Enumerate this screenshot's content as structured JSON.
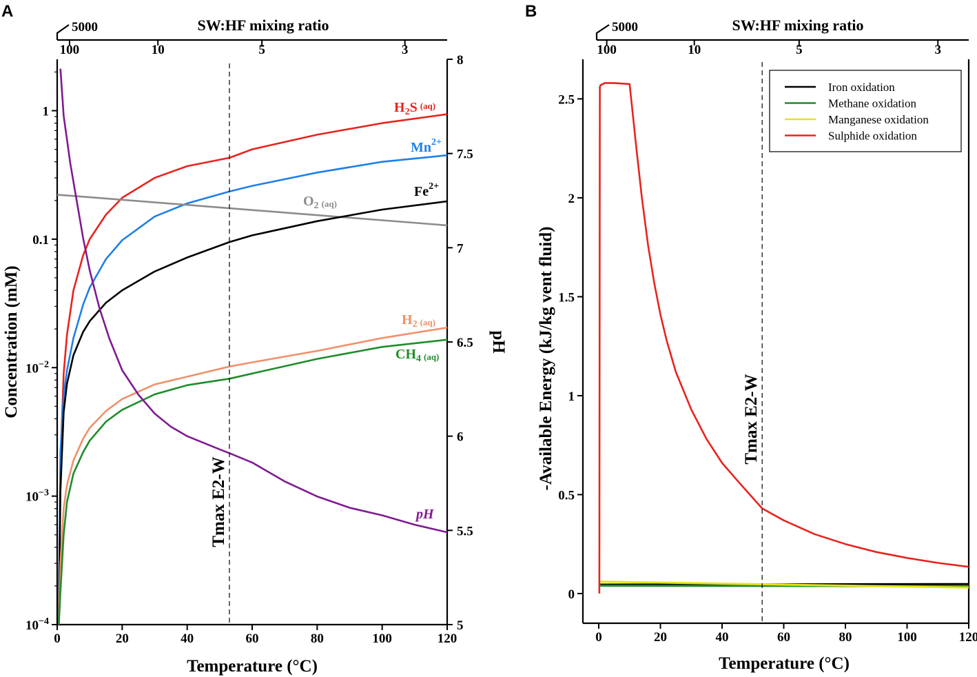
{
  "panels": {
    "A": "A",
    "B": "B"
  },
  "chart_data": [
    {
      "type": "line",
      "panel": "A",
      "xlabel": "Temperature (°C)",
      "ylabel": "Concentration (mM)",
      "y2label": "pH",
      "top_axis_label": "SW:HF mixing ratio",
      "xlim": [
        0,
        120
      ],
      "ylim_log10": [
        -4,
        0.4
      ],
      "y2lim": [
        5,
        8
      ],
      "xticks": [
        0,
        20,
        40,
        60,
        80,
        100,
        120
      ],
      "yticks": [
        {
          "value": 1,
          "label": "1"
        },
        {
          "value": 0.1,
          "label": "0.1"
        },
        {
          "value": 0.01,
          "base": "10",
          "exp": "−2"
        },
        {
          "value": 0.001,
          "base": "10",
          "exp": "−3"
        },
        {
          "value": 0.0001,
          "base": "10",
          "exp": "−4"
        }
      ],
      "y2ticks": [
        5,
        5.5,
        6,
        6.5,
        7,
        7.5,
        8
      ],
      "top_ticks": [
        {
          "label": "5000",
          "break_label": true
        },
        {
          "label": "100",
          "t": 3.8
        },
        {
          "label": "10",
          "t": 31
        },
        {
          "label": "5",
          "t": 63
        },
        {
          "label": "3",
          "t": 107
        }
      ],
      "tmax_line": {
        "x": 53,
        "label": "Tmax E2-W"
      },
      "series": [
        {
          "name": "H2S (aq)",
          "color": "#e8231d",
          "axis": "left",
          "x": [
            0.5,
            1,
            2,
            3,
            5,
            8,
            10,
            15,
            20,
            30,
            40,
            53,
            60,
            80,
            100,
            120
          ],
          "y": [
            0.0001,
            0.0018,
            0.009,
            0.018,
            0.04,
            0.075,
            0.1,
            0.155,
            0.21,
            0.3,
            0.37,
            0.43,
            0.5,
            0.65,
            0.8,
            0.94
          ]
        },
        {
          "name": "Mn2+",
          "color": "#1e7fe6",
          "axis": "left",
          "x": [
            0.5,
            1,
            2,
            3,
            5,
            8,
            10,
            15,
            20,
            30,
            40,
            53,
            60,
            80,
            100,
            120
          ],
          "y": [
            0.0001,
            0.0022,
            0.006,
            0.0095,
            0.017,
            0.031,
            0.042,
            0.07,
            0.098,
            0.15,
            0.19,
            0.235,
            0.26,
            0.33,
            0.4,
            0.45
          ]
        },
        {
          "name": "O2 (aq)",
          "color": "#8c8c8c",
          "axis": "left",
          "x": [
            0,
            120
          ],
          "y": [
            0.222,
            0.128
          ]
        },
        {
          "name": "Fe2+",
          "color": "#000000",
          "axis": "left",
          "x": [
            0.5,
            1,
            2,
            3,
            5,
            8,
            10,
            15,
            20,
            30,
            40,
            53,
            60,
            80,
            100,
            120
          ],
          "y": [
            0.0001,
            0.0011,
            0.0045,
            0.0075,
            0.0125,
            0.019,
            0.023,
            0.032,
            0.04,
            0.056,
            0.072,
            0.095,
            0.107,
            0.138,
            0.17,
            0.197
          ]
        },
        {
          "name": "H2 (aq)",
          "color": "#f0906a",
          "axis": "left",
          "x": [
            0.5,
            1,
            2,
            3,
            5,
            8,
            10,
            15,
            20,
            30,
            40,
            53,
            60,
            80,
            100,
            120
          ],
          "y": [
            0.0001,
            0.0003,
            0.0008,
            0.00122,
            0.0019,
            0.0028,
            0.0034,
            0.0046,
            0.0057,
            0.0074,
            0.0085,
            0.0102,
            0.011,
            0.0135,
            0.017,
            0.0205
          ]
        },
        {
          "name": "CH4 (aq)",
          "color": "#1f8c2a",
          "axis": "left",
          "x": [
            0.5,
            1,
            2,
            3,
            5,
            8,
            10,
            15,
            20,
            30,
            40,
            53,
            60,
            80,
            100,
            120
          ],
          "y": [
            0.0001,
            0.00018,
            0.0005,
            0.0009,
            0.0015,
            0.0022,
            0.0027,
            0.0038,
            0.0047,
            0.0062,
            0.0073,
            0.0082,
            0.009,
            0.0117,
            0.0145,
            0.0165
          ]
        },
        {
          "name": "pH",
          "color": "#7f1a91",
          "axis": "right",
          "x": [
            1,
            2,
            4,
            6,
            8,
            10,
            13,
            16,
            20,
            25,
            30,
            35,
            40,
            50,
            53,
            60,
            70,
            80,
            90,
            100,
            110,
            120
          ],
          "y": [
            7.95,
            7.7,
            7.45,
            7.25,
            7.05,
            6.88,
            6.68,
            6.52,
            6.35,
            6.22,
            6.12,
            6.05,
            6.0,
            5.93,
            5.91,
            5.86,
            5.76,
            5.68,
            5.62,
            5.58,
            5.53,
            5.49
          ]
        }
      ],
      "curve_labels": [
        {
          "series": "H2S (aq)",
          "main": "H",
          "sub": "2",
          "rest": "S",
          "small": "(aq)"
        },
        {
          "series": "Mn2+",
          "main": "Mn",
          "sup": "2+"
        },
        {
          "series": "Fe2+",
          "main": "Fe",
          "sup": "2+"
        },
        {
          "series": "O2 (aq)",
          "main": "O",
          "sub": "2",
          "small": "(aq)"
        },
        {
          "series": "H2 (aq)",
          "main": "H",
          "sub": "2",
          "small": "(aq)"
        },
        {
          "series": "CH4 (aq)",
          "main": "CH",
          "sub": "4",
          "small": "(aq)"
        },
        {
          "series": "pH",
          "main": "pH"
        }
      ]
    },
    {
      "type": "line",
      "panel": "B",
      "xlabel": "Temperature (°C)",
      "ylabel": "-Available Energy (kJ/kg vent fluid)",
      "top_axis_label": "SW:HF mixing ratio",
      "xlim": [
        0,
        120
      ],
      "ylim": [
        -0.15,
        2.7
      ],
      "xticks": [
        0,
        20,
        40,
        60,
        80,
        100,
        120
      ],
      "yticks": [
        0,
        0.5,
        1,
        1.5,
        2,
        2.5
      ],
      "ytick_labels": [
        "0",
        "0.5",
        "1",
        "1.5",
        "2",
        "2.5"
      ],
      "top_ticks": [
        {
          "label": "5000",
          "break_label": true
        },
        {
          "label": "100",
          "t": 2.6
        },
        {
          "label": "10",
          "t": 31
        },
        {
          "label": "5",
          "t": 65
        },
        {
          "label": "3",
          "t": 110
        }
      ],
      "tmax_line": {
        "x": 53,
        "label": "Tmax E2-W"
      },
      "legend": {
        "position": "top-right",
        "entries": [
          "Iron oxidation",
          "Methane oxidation",
          "Manganese oxidation",
          "Sulphide oxidation"
        ]
      },
      "series": [
        {
          "name": "Iron oxidation",
          "color": "#000000",
          "x": [
            0.5,
            120
          ],
          "y": [
            0.045,
            0.048
          ]
        },
        {
          "name": "Methane oxidation",
          "color": "#1f8c2a",
          "x": [
            0.5,
            120
          ],
          "y": [
            0.04,
            0.037
          ]
        },
        {
          "name": "Manganese oxidation",
          "color": "#e8e21a",
          "x": [
            0.5,
            60,
            120
          ],
          "y": [
            0.06,
            0.045,
            0.03
          ]
        },
        {
          "name": "Sulphide oxidation",
          "color": "#e8231d",
          "x": [
            0.2,
            0.35,
            0.6,
            2,
            5,
            10,
            11,
            12,
            14,
            16,
            18,
            20,
            22,
            25,
            30,
            35,
            40,
            45,
            53,
            60,
            70,
            80,
            90,
            100,
            110,
            120
          ],
          "y": [
            0.0,
            2.56,
            2.57,
            2.58,
            2.58,
            2.575,
            2.43,
            2.28,
            2.0,
            1.76,
            1.57,
            1.41,
            1.28,
            1.12,
            0.93,
            0.78,
            0.66,
            0.57,
            0.43,
            0.37,
            0.3,
            0.25,
            0.21,
            0.18,
            0.155,
            0.135
          ]
        }
      ]
    }
  ]
}
